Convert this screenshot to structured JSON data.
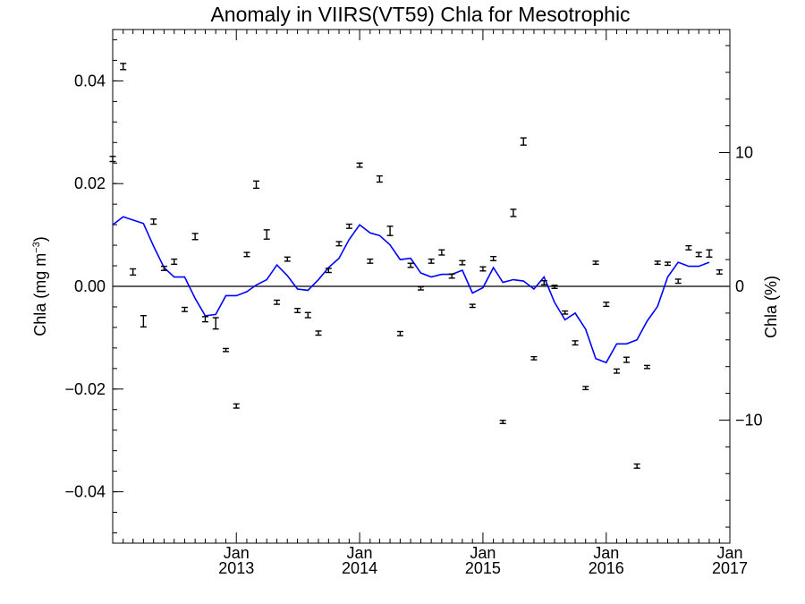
{
  "chart_data": {
    "type": "scatter",
    "title": "Anomaly in VIIRS(VT59) Chla for Mesotrophic",
    "ylabel_left": "Chla (mg m",
    "ylabel_left_sup": "−3",
    "ylabel_left_close": ")",
    "ylabel_right": "Chla (%)",
    "xlim": [
      "2012-01-01",
      "2017-01-01"
    ],
    "ylim_left": [
      -0.05,
      0.05
    ],
    "ylim_right": [
      -19.2,
      19.2
    ],
    "x_ticks": [
      {
        "date": "2013-01-01",
        "line1": "Jan",
        "line2": "2013"
      },
      {
        "date": "2014-01-01",
        "line1": "Jan",
        "line2": "2014"
      },
      {
        "date": "2015-01-01",
        "line1": "Jan",
        "line2": "2015"
      },
      {
        "date": "2016-01-01",
        "line1": "Jan",
        "line2": "2016"
      },
      {
        "date": "2017-01-01",
        "line1": "Jan",
        "line2": "2017"
      }
    ],
    "y_ticks_left": [
      {
        "value": 0.04,
        "label": "0.04"
      },
      {
        "value": 0.02,
        "label": "0.02"
      },
      {
        "value": 0.0,
        "label": "0.00"
      },
      {
        "value": -0.02,
        "label": "−0.02"
      },
      {
        "value": -0.04,
        "label": "−0.04"
      }
    ],
    "y_ticks_right": [
      {
        "value": 10,
        "label": "10"
      },
      {
        "value": 0,
        "label": "0"
      },
      {
        "value": -10,
        "label": "−10"
      }
    ],
    "series": [
      {
        "kind": "errorbar",
        "color": "#000000",
        "points": [
          {
            "x": "2012-01-01",
            "y": 0.0248,
            "err": 0.0005
          },
          {
            "x": "2012-02-01",
            "y": 0.0428,
            "err": 0.0006
          },
          {
            "x": "2012-03-01",
            "y": 0.0028,
            "err": 0.0006
          },
          {
            "x": "2012-04-01",
            "y": -0.0068,
            "err": 0.0011
          },
          {
            "x": "2012-05-01",
            "y": 0.0126,
            "err": 0.0005
          },
          {
            "x": "2012-06-01",
            "y": 0.0035,
            "err": 0.0004
          },
          {
            "x": "2012-07-01",
            "y": 0.0048,
            "err": 0.0005
          },
          {
            "x": "2012-08-01",
            "y": -0.0045,
            "err": 0.0004
          },
          {
            "x": "2012-09-01",
            "y": 0.0097,
            "err": 0.0006
          },
          {
            "x": "2012-10-01",
            "y": -0.0064,
            "err": 0.0005
          },
          {
            "x": "2012-11-01",
            "y": -0.0072,
            "err": 0.0011
          },
          {
            "x": "2012-12-01",
            "y": -0.0124,
            "err": 0.0003
          },
          {
            "x": "2013-01-01",
            "y": -0.0233,
            "err": 0.0004
          },
          {
            "x": "2013-02-01",
            "y": 0.0062,
            "err": 0.0004
          },
          {
            "x": "2013-03-01",
            "y": 0.0198,
            "err": 0.0007
          },
          {
            "x": "2013-04-01",
            "y": 0.0101,
            "err": 0.0009
          },
          {
            "x": "2013-05-01",
            "y": -0.0031,
            "err": 0.0004
          },
          {
            "x": "2013-06-01",
            "y": 0.0053,
            "err": 0.0004
          },
          {
            "x": "2013-07-01",
            "y": -0.0047,
            "err": 0.0004
          },
          {
            "x": "2013-08-01",
            "y": -0.0056,
            "err": 0.0005
          },
          {
            "x": "2013-09-01",
            "y": -0.0091,
            "err": 0.0004
          },
          {
            "x": "2013-10-01",
            "y": 0.0031,
            "err": 0.0004
          },
          {
            "x": "2013-11-01",
            "y": 0.0083,
            "err": 0.0004
          },
          {
            "x": "2013-12-01",
            "y": 0.0117,
            "err": 0.0004
          },
          {
            "x": "2014-01-01",
            "y": 0.0236,
            "err": 0.0004
          },
          {
            "x": "2014-02-01",
            "y": 0.0049,
            "err": 0.0004
          },
          {
            "x": "2014-03-01",
            "y": 0.0209,
            "err": 0.0006
          },
          {
            "x": "2014-04-01",
            "y": 0.0108,
            "err": 0.0009
          },
          {
            "x": "2014-05-01",
            "y": -0.0092,
            "err": 0.0004
          },
          {
            "x": "2014-06-01",
            "y": 0.0041,
            "err": 0.0004
          },
          {
            "x": "2014-07-01",
            "y": -0.0004,
            "err": 0.0003
          },
          {
            "x": "2014-08-01",
            "y": 0.0049,
            "err": 0.0004
          },
          {
            "x": "2014-09-01",
            "y": 0.0066,
            "err": 0.0005
          },
          {
            "x": "2014-10-01",
            "y": 0.002,
            "err": 0.0004
          },
          {
            "x": "2014-11-01",
            "y": 0.0046,
            "err": 0.0004
          },
          {
            "x": "2014-12-01",
            "y": -0.0038,
            "err": 0.0003
          },
          {
            "x": "2015-01-01",
            "y": 0.0034,
            "err": 0.0004
          },
          {
            "x": "2015-02-01",
            "y": 0.0054,
            "err": 0.0004
          },
          {
            "x": "2015-03-01",
            "y": -0.0264,
            "err": 0.0003
          },
          {
            "x": "2015-04-01",
            "y": 0.0143,
            "err": 0.0007
          },
          {
            "x": "2015-05-01",
            "y": 0.0282,
            "err": 0.0007
          },
          {
            "x": "2015-06-01",
            "y": -0.014,
            "err": 0.0003
          },
          {
            "x": "2015-07-01",
            "y": 0.0007,
            "err": 0.0004
          },
          {
            "x": "2015-08-01",
            "y": -0.0001,
            "err": 0.0003
          },
          {
            "x": "2015-09-01",
            "y": -0.0051,
            "err": 0.0003
          },
          {
            "x": "2015-10-01",
            "y": -0.011,
            "err": 0.0004
          },
          {
            "x": "2015-11-01",
            "y": -0.0198,
            "err": 0.0003
          },
          {
            "x": "2015-12-01",
            "y": 0.0046,
            "err": 0.0003
          },
          {
            "x": "2016-01-01",
            "y": -0.0035,
            "err": 0.0004
          },
          {
            "x": "2016-02-01",
            "y": -0.0165,
            "err": 0.0004
          },
          {
            "x": "2016-03-01",
            "y": -0.0143,
            "err": 0.0005
          },
          {
            "x": "2016-04-01",
            "y": -0.035,
            "err": 0.0004
          },
          {
            "x": "2016-05-01",
            "y": -0.0157,
            "err": 0.0003
          },
          {
            "x": "2016-06-01",
            "y": 0.0046,
            "err": 0.0003
          },
          {
            "x": "2016-07-01",
            "y": 0.0044,
            "err": 0.0003
          },
          {
            "x": "2016-08-01",
            "y": 0.001,
            "err": 0.0004
          },
          {
            "x": "2016-09-01",
            "y": 0.0075,
            "err": 0.0004
          },
          {
            "x": "2016-10-01",
            "y": 0.0062,
            "err": 0.0004
          },
          {
            "x": "2016-11-01",
            "y": 0.0064,
            "err": 0.0007
          },
          {
            "x": "2016-12-01",
            "y": 0.0028,
            "err": 0.0004
          }
        ]
      },
      {
        "kind": "line",
        "color": "#0000ff",
        "axis": "right",
        "points": [
          {
            "x": "2012-01-01",
            "y": 4.6
          },
          {
            "x": "2012-02-01",
            "y": 5.2
          },
          {
            "x": "2012-04-01",
            "y": 4.7
          },
          {
            "x": "2012-05-01",
            "y": 3.0
          },
          {
            "x": "2012-06-01",
            "y": 1.4
          },
          {
            "x": "2012-07-01",
            "y": 0.7
          },
          {
            "x": "2012-08-01",
            "y": 0.7
          },
          {
            "x": "2012-09-01",
            "y": -0.9
          },
          {
            "x": "2012-10-01",
            "y": -2.2
          },
          {
            "x": "2012-11-01",
            "y": -2.1
          },
          {
            "x": "2012-12-01",
            "y": -0.7
          },
          {
            "x": "2013-01-01",
            "y": -0.7
          },
          {
            "x": "2013-02-01",
            "y": -0.4
          },
          {
            "x": "2013-03-01",
            "y": 0.1
          },
          {
            "x": "2013-04-01",
            "y": 0.5
          },
          {
            "x": "2013-05-01",
            "y": 1.6
          },
          {
            "x": "2013-06-01",
            "y": 0.8
          },
          {
            "x": "2013-07-01",
            "y": -0.2
          },
          {
            "x": "2013-08-01",
            "y": -0.3
          },
          {
            "x": "2013-09-01",
            "y": 0.5
          },
          {
            "x": "2013-10-01",
            "y": 1.4
          },
          {
            "x": "2013-11-01",
            "y": 2.1
          },
          {
            "x": "2013-12-01",
            "y": 3.5
          },
          {
            "x": "2014-01-01",
            "y": 4.6
          },
          {
            "x": "2014-02-01",
            "y": 4.0
          },
          {
            "x": "2014-03-01",
            "y": 3.8
          },
          {
            "x": "2014-04-01",
            "y": 3.1
          },
          {
            "x": "2014-05-01",
            "y": 2.0
          },
          {
            "x": "2014-06-01",
            "y": 2.1
          },
          {
            "x": "2014-07-01",
            "y": 1.0
          },
          {
            "x": "2014-08-01",
            "y": 0.7
          },
          {
            "x": "2014-09-01",
            "y": 0.9
          },
          {
            "x": "2014-10-01",
            "y": 0.9
          },
          {
            "x": "2014-11-01",
            "y": 1.2
          },
          {
            "x": "2014-12-01",
            "y": -0.5
          },
          {
            "x": "2015-01-01",
            "y": -0.1
          },
          {
            "x": "2015-02-01",
            "y": 1.4
          },
          {
            "x": "2015-03-01",
            "y": 0.3
          },
          {
            "x": "2015-04-01",
            "y": 0.5
          },
          {
            "x": "2015-05-01",
            "y": 0.4
          },
          {
            "x": "2015-06-01",
            "y": -0.2
          },
          {
            "x": "2015-07-01",
            "y": 0.7
          },
          {
            "x": "2015-08-01",
            "y": -1.2
          },
          {
            "x": "2015-09-01",
            "y": -2.5
          },
          {
            "x": "2015-10-01",
            "y": -2.0
          },
          {
            "x": "2015-11-01",
            "y": -3.2
          },
          {
            "x": "2015-12-01",
            "y": -5.4
          },
          {
            "x": "2016-01-01",
            "y": -5.7
          },
          {
            "x": "2016-02-01",
            "y": -4.3
          },
          {
            "x": "2016-03-01",
            "y": -4.3
          },
          {
            "x": "2016-04-01",
            "y": -4.0
          },
          {
            "x": "2016-05-01",
            "y": -2.6
          },
          {
            "x": "2016-06-01",
            "y": -1.5
          },
          {
            "x": "2016-07-01",
            "y": 0.7
          },
          {
            "x": "2016-08-01",
            "y": 1.8
          },
          {
            "x": "2016-09-01",
            "y": 1.5
          },
          {
            "x": "2016-10-01",
            "y": 1.5
          },
          {
            "x": "2016-11-01",
            "y": 1.8
          }
        ]
      }
    ],
    "zero_line": true,
    "grid": false,
    "legend": "none"
  }
}
